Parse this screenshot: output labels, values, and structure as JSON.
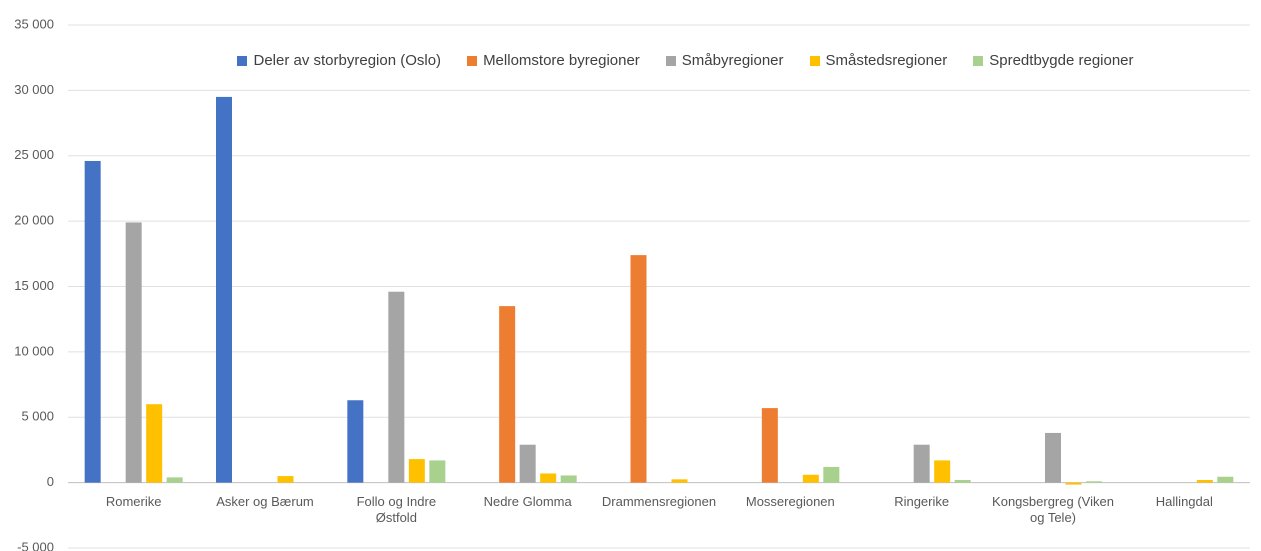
{
  "chart_data": {
    "type": "bar",
    "categories": [
      "Romerike",
      "Asker og Bærum",
      "Follo og Indre Østfold",
      "Nedre Glomma",
      "Drammensregionen",
      "Mosseregionen",
      "Ringerike",
      "Kongsbergreg (Viken og Tele)",
      "Hallingdal"
    ],
    "series": [
      {
        "name": "Deler av storbyregion (Oslo)",
        "color": "#4472c4",
        "values": [
          24600,
          29500,
          6300,
          0,
          0,
          0,
          0,
          0,
          0
        ]
      },
      {
        "name": "Mellomstore byregioner",
        "color": "#ed7d31",
        "values": [
          0,
          0,
          0,
          13500,
          17400,
          5700,
          0,
          0,
          0
        ]
      },
      {
        "name": "Småbyregioner",
        "color": "#a5a5a5",
        "values": [
          19900,
          0,
          14600,
          2900,
          0,
          0,
          2900,
          3800,
          0
        ]
      },
      {
        "name": "Småstedsregioner",
        "color": "#ffc000",
        "values": [
          6000,
          500,
          1800,
          700,
          250,
          600,
          1700,
          -150,
          200
        ]
      },
      {
        "name": "Spredtbygde regioner",
        "color": "#a9d18e",
        "values": [
          400,
          0,
          1700,
          550,
          0,
          1200,
          200,
          100,
          450
        ]
      }
    ],
    "ylim": [
      -5000,
      35000
    ],
    "yticks": [
      {
        "value": -5000,
        "label": "-5 000"
      },
      0,
      {
        "value": 5000,
        "label": "5 000"
      },
      {
        "value": 10000,
        "label": "10 000"
      },
      {
        "value": 15000,
        "label": "15 000"
      },
      {
        "value": 20000,
        "label": "20 000"
      },
      {
        "value": 25000,
        "label": "25 000"
      },
      {
        "value": 30000,
        "label": "30 000"
      },
      {
        "value": 35000,
        "label": "35 000"
      }
    ],
    "grid": true,
    "legend": "top"
  }
}
